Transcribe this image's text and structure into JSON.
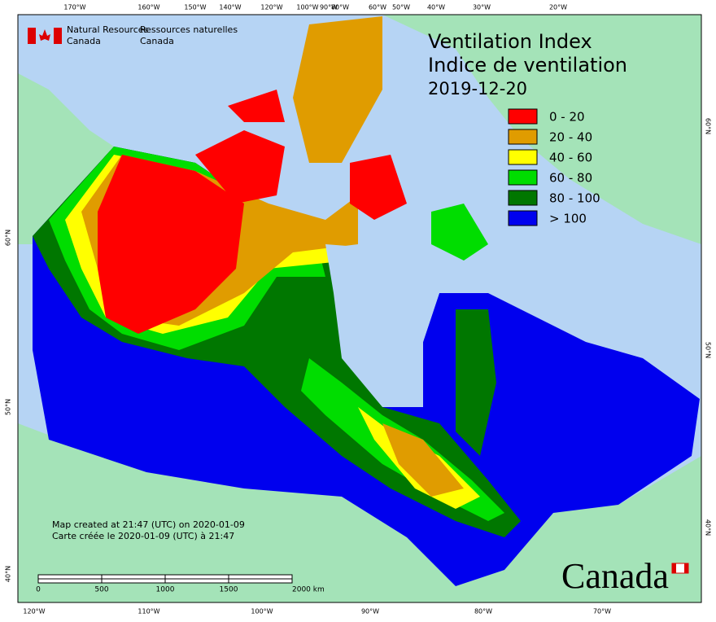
{
  "header": {
    "agency_en": [
      "Natural Resources",
      "Canada"
    ],
    "agency_fr": [
      "Ressources naturelles",
      "Canada"
    ]
  },
  "title": [
    "Ventilation Index",
    "Indice de ventilation",
    "2019-12-20"
  ],
  "legend": [
    {
      "label": "0 - 20",
      "color": "#ff0000"
    },
    {
      "label": "20 - 40",
      "color": "#e09c00"
    },
    {
      "label": "40 - 60",
      "color": "#ffff00"
    },
    {
      "label": "60 - 80",
      "color": "#00dd00"
    },
    {
      "label": "80 - 100",
      "color": "#007700"
    },
    {
      "label": "> 100",
      "color": "#0000ee"
    }
  ],
  "graticule": {
    "top": [
      "170°W",
      "160°W",
      "150°W",
      "140°W",
      "120°W",
      "100°W",
      "90°W",
      "80°W",
      "60°W",
      "50°W",
      "40°W",
      "30°W",
      "20°W"
    ],
    "bottom": [
      "120°W",
      "110°W",
      "100°W",
      "90°W",
      "80°W",
      "70°W"
    ],
    "left": [
      "60°N",
      "50°N",
      "40°N"
    ],
    "right": [
      "60°N",
      "50°N",
      "40°N"
    ]
  },
  "credit": [
    "Map created at 21:47 (UTC) on 2020-01-09",
    "Carte créée le 2020-01-09 (UTC) à 21:47"
  ],
  "scale": [
    "0",
    "500",
    "1000",
    "1500",
    "2000 km"
  ],
  "wordmark": "Canada"
}
